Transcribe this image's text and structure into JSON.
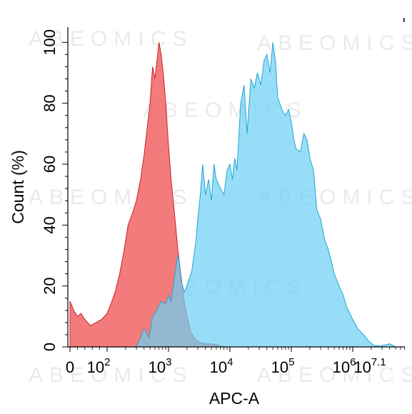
{
  "chart_data": {
    "type": "area",
    "xlabel": "APC-A",
    "ylabel": "Count (%)",
    "x_scale": "biexponential",
    "xlim": [
      -100,
      12589254
    ],
    "ylim": [
      0,
      105
    ],
    "x_ticks": [
      {
        "value": 0,
        "base": "0",
        "exp": ""
      },
      {
        "value": 100,
        "base": "10",
        "exp": "2"
      },
      {
        "value": 1000,
        "base": "10",
        "exp": "3"
      },
      {
        "value": 10000,
        "base": "10",
        "exp": "4"
      },
      {
        "value": 100000,
        "base": "10",
        "exp": "5"
      },
      {
        "value": 1000000,
        "base": "10",
        "exp": "6"
      },
      {
        "value": 12589254,
        "base": "10",
        "exp": "7.1"
      }
    ],
    "y_ticks": [
      0,
      20,
      40,
      60,
      80,
      100
    ],
    "grid": false,
    "watermark": "ABEOMICS",
    "series": [
      {
        "color": "#f26d6d",
        "stroke": "#c8202a",
        "points": [
          [
            0,
            15
          ],
          [
            10,
            12
          ],
          [
            20,
            10
          ],
          [
            30,
            11
          ],
          [
            40,
            9
          ],
          [
            55,
            7
          ],
          [
            70,
            8
          ],
          [
            85,
            9
          ],
          [
            100,
            11
          ],
          [
            115,
            14
          ],
          [
            135,
            18
          ],
          [
            160,
            24
          ],
          [
            190,
            32
          ],
          [
            220,
            40
          ],
          [
            260,
            44
          ],
          [
            300,
            48
          ],
          [
            350,
            55
          ],
          [
            400,
            63
          ],
          [
            450,
            72
          ],
          [
            500,
            80
          ],
          [
            550,
            92
          ],
          [
            600,
            88
          ],
          [
            650,
            94
          ],
          [
            700,
            100
          ],
          [
            760,
            96
          ],
          [
            820,
            90
          ],
          [
            900,
            80
          ],
          [
            1000,
            66
          ],
          [
            1100,
            55
          ],
          [
            1250,
            44
          ],
          [
            1400,
            33
          ],
          [
            1600,
            23
          ],
          [
            1800,
            15
          ],
          [
            2000,
            10
          ],
          [
            2300,
            5
          ],
          [
            2700,
            2.5
          ],
          [
            3200,
            1.5
          ],
          [
            4000,
            1
          ],
          [
            5000,
            1
          ],
          [
            6000,
            0.8
          ],
          [
            7000,
            0.3
          ],
          [
            8000,
            0
          ]
        ]
      },
      {
        "color": "#6fd0f4",
        "stroke": "#1fa6d6",
        "points": [
          [
            300,
            0
          ],
          [
            350,
            3
          ],
          [
            400,
            6
          ],
          [
            480,
            3
          ],
          [
            550,
            10
          ],
          [
            650,
            12
          ],
          [
            750,
            15
          ],
          [
            900,
            14
          ],
          [
            1000,
            17
          ],
          [
            1100,
            15
          ],
          [
            1200,
            20
          ],
          [
            1300,
            25
          ],
          [
            1400,
            30
          ],
          [
            1500,
            28
          ],
          [
            1600,
            22
          ],
          [
            1800,
            18
          ],
          [
            2000,
            20
          ],
          [
            2400,
            25
          ],
          [
            2800,
            35
          ],
          [
            3000,
            42
          ],
          [
            3300,
            50
          ],
          [
            3600,
            60
          ],
          [
            4000,
            50
          ],
          [
            4500,
            55
          ],
          [
            5000,
            48
          ],
          [
            5500,
            60
          ],
          [
            6000,
            55
          ],
          [
            7000,
            52
          ],
          [
            8000,
            50
          ],
          [
            9000,
            58
          ],
          [
            10000,
            60
          ],
          [
            11000,
            55
          ],
          [
            12000,
            62
          ],
          [
            13000,
            58
          ],
          [
            15000,
            80
          ],
          [
            17000,
            86
          ],
          [
            19000,
            70
          ],
          [
            22000,
            88
          ],
          [
            25000,
            85
          ],
          [
            28000,
            90
          ],
          [
            32000,
            86
          ],
          [
            36000,
            94
          ],
          [
            40000,
            96
          ],
          [
            45000,
            90
          ],
          [
            50000,
            100
          ],
          [
            55000,
            94
          ],
          [
            60000,
            82
          ],
          [
            70000,
            78
          ],
          [
            80000,
            76
          ],
          [
            90000,
            78
          ],
          [
            100000,
            74
          ],
          [
            110000,
            68
          ],
          [
            120000,
            65
          ],
          [
            140000,
            64
          ],
          [
            160000,
            70
          ],
          [
            180000,
            68
          ],
          [
            200000,
            62
          ],
          [
            230000,
            58
          ],
          [
            260000,
            45
          ],
          [
            300000,
            42
          ],
          [
            350000,
            35
          ],
          [
            400000,
            32
          ],
          [
            450000,
            28
          ],
          [
            500000,
            24
          ],
          [
            600000,
            20
          ],
          [
            700000,
            17
          ],
          [
            800000,
            13
          ],
          [
            1000000,
            9
          ],
          [
            1200000,
            6
          ],
          [
            1500000,
            4
          ],
          [
            1800000,
            2
          ],
          [
            2200000,
            0.5
          ],
          [
            2800000,
            0.3
          ],
          [
            4000000,
            1
          ],
          [
            5000000,
            0
          ]
        ]
      }
    ]
  }
}
